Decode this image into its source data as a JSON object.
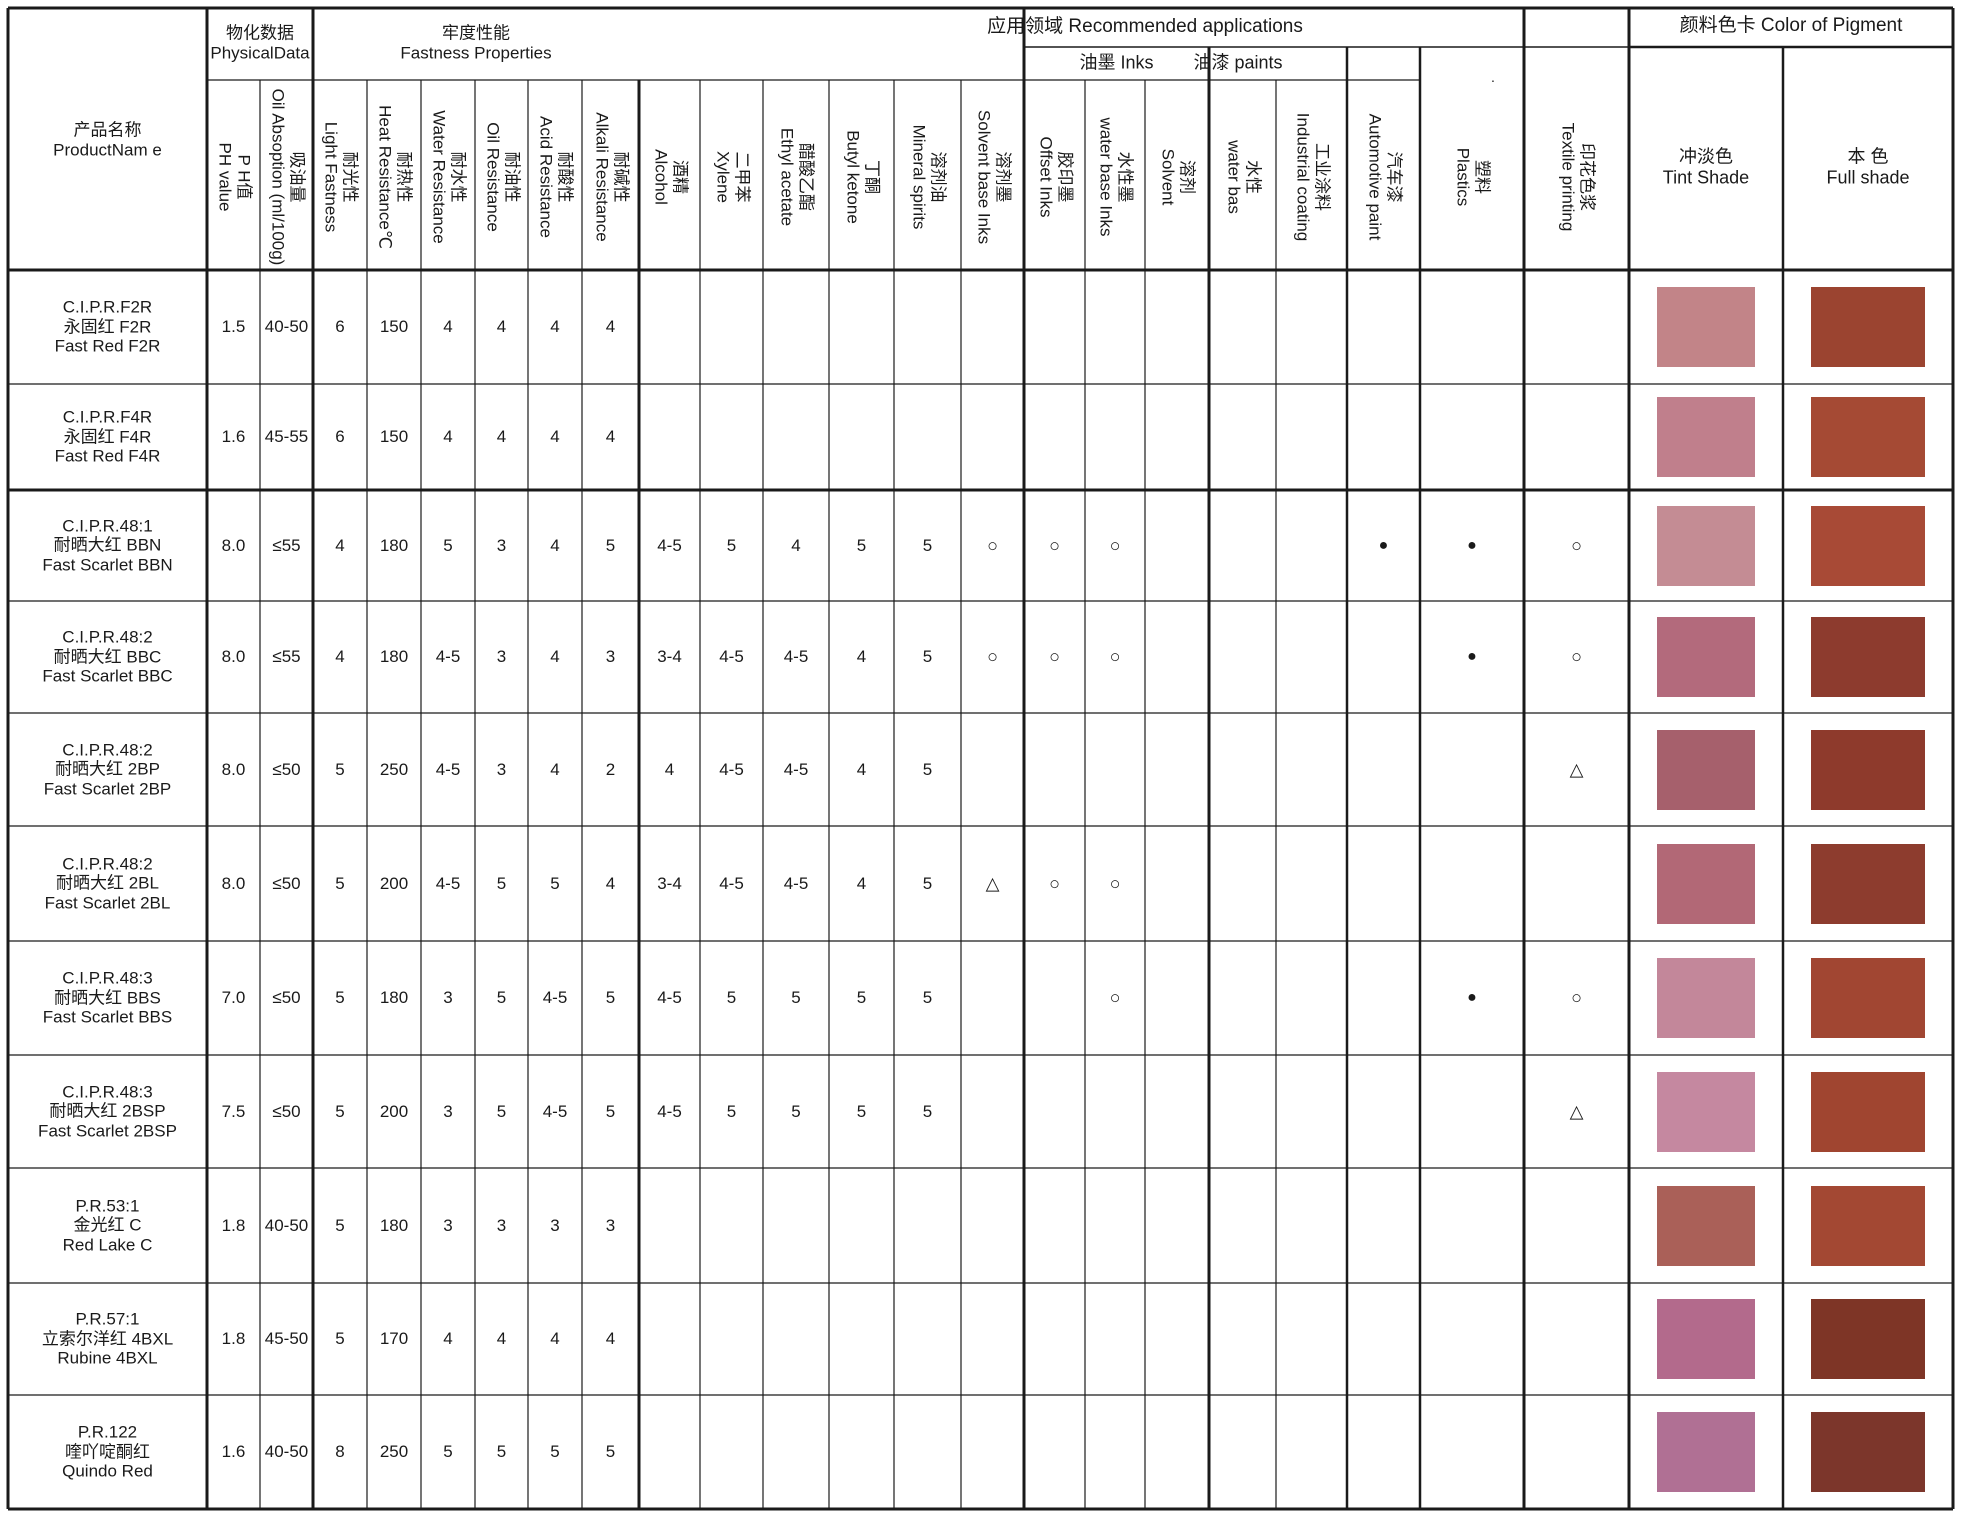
{
  "header": {
    "product_name": [
      "产品名称",
      "ProductNam e"
    ],
    "physical_data": [
      "物化数据",
      "PhysicalData"
    ],
    "fastness": [
      "牢度性能",
      "Fastness Properties"
    ],
    "applications": "应用领域 Recommended applications",
    "inks": "油墨  Inks",
    "paints": "油漆  paints",
    "color_of_pigment": "颜料色卡 Color of Pigment",
    "tint_shade": [
      "冲淡色",
      "Tint Shade"
    ],
    "full_shade": [
      "本 色",
      "Full shade"
    ],
    "plastics_dot": "·"
  },
  "columns": [
    {
      "key": "ph",
      "lines": [
        "P H值",
        "PH value"
      ]
    },
    {
      "key": "oil_absorption",
      "lines": [
        "吸油量",
        "Oil Absoption (ml/100g)"
      ]
    },
    {
      "key": "light",
      "lines": [
        "耐光性",
        "Light Fastness"
      ]
    },
    {
      "key": "heat",
      "lines": [
        "耐热性",
        "Heat Resistance℃"
      ]
    },
    {
      "key": "water",
      "lines": [
        "耐水性",
        "Water Resistance"
      ]
    },
    {
      "key": "oil",
      "lines": [
        "耐油性",
        "Oil Resistance"
      ]
    },
    {
      "key": "acid",
      "lines": [
        "耐酸性",
        "Acid Resistance"
      ]
    },
    {
      "key": "alkali",
      "lines": [
        "耐碱性",
        "Alkali Resistance"
      ]
    },
    {
      "key": "alcohol",
      "lines": [
        "酒精",
        "Alcohol"
      ]
    },
    {
      "key": "xylene",
      "lines": [
        "二甲苯",
        "Xylene"
      ]
    },
    {
      "key": "ethyl_acetate",
      "lines": [
        "醋酸乙酯",
        "Ethyl acetate"
      ]
    },
    {
      "key": "butyl_ketone",
      "lines": [
        "丁酮",
        "Butyl ketone"
      ]
    },
    {
      "key": "mineral_spirits",
      "lines": [
        "溶剂油",
        "Mineral spirits"
      ]
    },
    {
      "key": "solvent_inks",
      "lines": [
        "溶剂墨",
        "Solvent base Inks"
      ]
    },
    {
      "key": "offset_inks",
      "lines": [
        "胶印墨",
        "Offset Inks"
      ]
    },
    {
      "key": "water_inks",
      "lines": [
        "水性墨",
        "water base Inks"
      ]
    },
    {
      "key": "solvent_paint",
      "lines": [
        "溶剂",
        "Solvent"
      ]
    },
    {
      "key": "water_paint",
      "lines": [
        "水性",
        "water bas"
      ]
    },
    {
      "key": "industrial",
      "lines": [
        "工业涂料",
        "Industrial coating"
      ]
    },
    {
      "key": "automotive",
      "lines": [
        "汽车漆",
        "Automotive paint"
      ]
    },
    {
      "key": "plastics",
      "lines": [
        "塑料",
        "Plastics"
      ]
    },
    {
      "key": "textile",
      "lines": [
        "印花色浆",
        "Textile printing"
      ]
    }
  ],
  "rows": [
    {
      "name": [
        "C.I.P.R.F2R",
        "永固红 F2R",
        "Fast Red  F2R"
      ],
      "cells": [
        "1.5",
        "40-50",
        "6",
        "150",
        "4",
        "4",
        "4",
        "4",
        "",
        "",
        "",
        "",
        "",
        "",
        "",
        "",
        "",
        "",
        "",
        "",
        "",
        ""
      ],
      "tint": "#c28488",
      "full": "#9b4430"
    },
    {
      "name": [
        "C.I.P.R.F4R",
        "永固红 F4R",
        "Fast Red  F4R"
      ],
      "cells": [
        "1.6",
        "45-55",
        "6",
        "150",
        "4",
        "4",
        "4",
        "4",
        "",
        "",
        "",
        "",
        "",
        "",
        "",
        "",
        "",
        "",
        "",
        "",
        "",
        ""
      ],
      "tint": "#c07f8c",
      "full": "#a54a34"
    },
    {
      "name": [
        "C.I.P.R.48:1",
        "耐晒大红 BBN",
        "Fast Scarlet  BBN"
      ],
      "cells": [
        "8.0",
        "≤55",
        "4",
        "180",
        "5",
        "3",
        "4",
        "5",
        "4-5",
        "5",
        "4",
        "5",
        "5",
        "○",
        "○",
        "○",
        "",
        "",
        "",
        "●",
        "●",
        "○"
      ],
      "tint": "#c48c94",
      "full": "#a84a36"
    },
    {
      "name": [
        "C.I.P.R.48:2",
        "耐晒大红 BBC",
        "Fast Scarlet BBC"
      ],
      "cells": [
        "8.0",
        "≤55",
        "4",
        "180",
        "4-5",
        "3",
        "4",
        "3",
        "3-4",
        "4-5",
        "4-5",
        "4",
        "5",
        "○",
        "○",
        "○",
        "",
        "",
        "",
        "",
        "●",
        "○"
      ],
      "tint": "#b36a7c",
      "full": "#8d3b2e"
    },
    {
      "name": [
        "C.I.P.R.48:2",
        "耐晒大红 2BP",
        "Fast Scarlet  2BP"
      ],
      "cells": [
        "8.0",
        "≤50",
        "5",
        "250",
        "4-5",
        "3",
        "4",
        "2",
        "4",
        "4-5",
        "4-5",
        "4",
        "5",
        "",
        "",
        "",
        "",
        "",
        "",
        "",
        "",
        "△"
      ],
      "tint": "#a6606c",
      "full": "#8e3a2c"
    },
    {
      "name": [
        "C.I.P.R.48:2",
        "耐晒大红 2BL",
        "Fast Scarlet  2BL"
      ],
      "cells": [
        "8.0",
        "≤50",
        "5",
        "200",
        "4-5",
        "5",
        "5",
        "4",
        "3-4",
        "4-5",
        "4-5",
        "4",
        "5",
        "△",
        "○",
        "○",
        "",
        "",
        "",
        "",
        "",
        ""
      ],
      "tint": "#b26876",
      "full": "#8d3c2e"
    },
    {
      "name": [
        "C.I.P.R.48:3",
        "耐晒大红  BBS",
        "Fast Scarlet BBS"
      ],
      "cells": [
        "7.0",
        "≤50",
        "5",
        "180",
        "3",
        "5",
        "4-5",
        "5",
        "4-5",
        "5",
        "5",
        "5",
        "5",
        "",
        "",
        "○",
        "",
        "",
        "",
        "",
        "●",
        "○"
      ],
      "tint": "#c3879a",
      "full": "#a14632"
    },
    {
      "name": [
        "C.I.P.R.48:3",
        "耐晒大红  2BSP",
        "Fast Scarlet 2BSP"
      ],
      "cells": [
        "7.5",
        "≤50",
        "5",
        "200",
        "3",
        "5",
        "4-5",
        "5",
        "4-5",
        "5",
        "5",
        "5",
        "5",
        "",
        "",
        "",
        "",
        "",
        "",
        "",
        "",
        "△"
      ],
      "tint": "#c588a0",
      "full": "#a04530"
    },
    {
      "name": [
        "P.R.53:1",
        "金光红 C",
        "Red Lake C"
      ],
      "cells": [
        "1.8",
        "40-50",
        "5",
        "180",
        "3",
        "3",
        "3",
        "3",
        "",
        "",
        "",
        "",
        "",
        "",
        "",
        "",
        "",
        "",
        "",
        "",
        "",
        ""
      ],
      "tint": "#aa6058",
      "full": "#a34833"
    },
    {
      "name": [
        "P.R.57:1",
        "立索尔洋红 4BXL",
        "Rubine 4BXL"
      ],
      "cells": [
        "1.8",
        "45-50",
        "5",
        "170",
        "4",
        "4",
        "4",
        "4",
        "",
        "",
        "",
        "",
        "",
        "",
        "",
        "",
        "",
        "",
        "",
        "",
        "",
        ""
      ],
      "tint": "#b36a8c",
      "full": "#7e3526"
    },
    {
      "name": [
        "P.R.122",
        "喹吖啶酮红",
        "Quindo Red"
      ],
      "cells": [
        "1.6",
        "40-50",
        "8",
        "250",
        "5",
        "5",
        "5",
        "5",
        "",
        "",
        "",
        "",
        "",
        "",
        "",
        "",
        "",
        "",
        "",
        "",
        "",
        ""
      ],
      "tint": "#b07094",
      "full": "#7c362b"
    }
  ]
}
